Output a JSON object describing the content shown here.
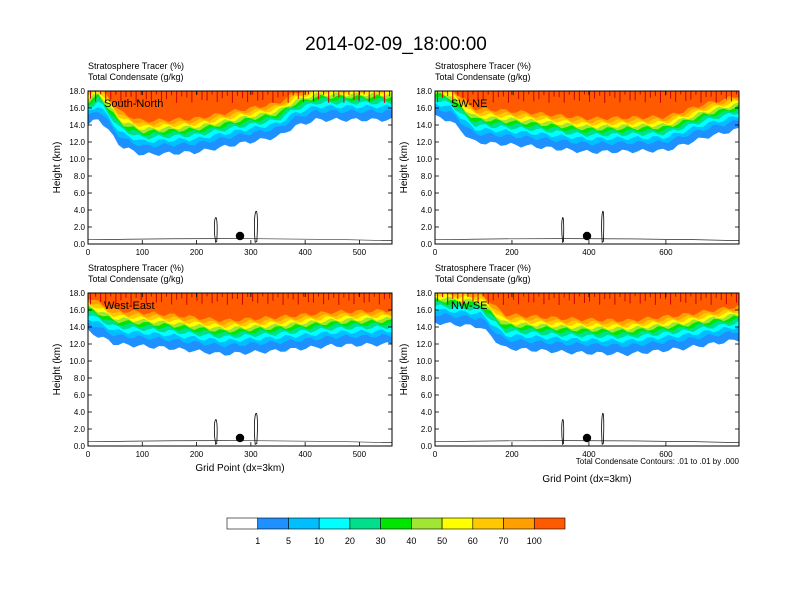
{
  "page_title": "2014-02-09_18:00:00",
  "footnote": "Total Condensate Contours: .01 to .01 by .000",
  "colorbar": {
    "ticks": [
      "1",
      "5",
      "10",
      "20",
      "30",
      "40",
      "50",
      "60",
      "70",
      "100"
    ],
    "colors": [
      "#ffffff",
      "#1e90ff",
      "#00bfff",
      "#00ffff",
      "#00e08c",
      "#00e600",
      "#a0e632",
      "#ffff00",
      "#ffc800",
      "#ffa000",
      "#ff5a00",
      "#ff0000"
    ]
  },
  "chart_data": [
    {
      "type": "heatmap",
      "panel": "South-North",
      "title_line1": "Stratosphere Tracer   (%)",
      "title_line2": "Total Condensate   (g/kg)",
      "xlabel": "",
      "ylabel": "Height (km)",
      "xlim": [
        0,
        560
      ],
      "ylim": [
        0,
        18
      ],
      "xticks": [
        "0",
        "100",
        "200",
        "300",
        "400",
        "500"
      ],
      "xtick_values": [
        0,
        100,
        200,
        300,
        400,
        500
      ],
      "yticks": [
        "0.0",
        "2.0",
        "4.0",
        "6.0",
        "8.0",
        "10.0",
        "12.0",
        "14.0",
        "16.0",
        "18.0"
      ],
      "marker_x": 280,
      "tracer_levels_pct": [
        1,
        5,
        10,
        20,
        30,
        40,
        50,
        60,
        70,
        100
      ],
      "layer_base_km": [
        [
          0,
          14.0
        ],
        [
          20,
          14.8
        ],
        [
          60,
          11.5
        ],
        [
          100,
          10.5
        ],
        [
          200,
          10.8
        ],
        [
          280,
          11.8
        ],
        [
          350,
          12.6
        ],
        [
          380,
          13.8
        ],
        [
          420,
          14.6
        ],
        [
          560,
          14.6
        ]
      ],
      "top_km": 18
    },
    {
      "type": "heatmap",
      "panel": "SW-NE",
      "title_line1": "Stratosphere Tracer   (%)",
      "title_line2": "Total Condensate   (g/kg)",
      "xlabel": "",
      "ylabel": "Height (km)",
      "xlim": [
        0,
        790
      ],
      "ylim": [
        0,
        18
      ],
      "xticks": [
        "0",
        "200",
        "400",
        "600"
      ],
      "xtick_values": [
        0,
        200,
        400,
        600
      ],
      "yticks": [
        "0.0",
        "2.0",
        "4.0",
        "6.0",
        "8.0",
        "10.0",
        "12.0",
        "14.0",
        "16.0",
        "18.0"
      ],
      "marker_x": 395,
      "tracer_levels_pct": [
        1,
        5,
        10,
        20,
        30,
        40,
        50,
        60,
        70,
        100
      ],
      "layer_base_km": [
        [
          0,
          15.0
        ],
        [
          40,
          14.5
        ],
        [
          100,
          12.0
        ],
        [
          250,
          11.5
        ],
        [
          400,
          10.8
        ],
        [
          600,
          11.0
        ],
        [
          700,
          12.5
        ],
        [
          790,
          13.5
        ]
      ],
      "top_km": 18
    },
    {
      "type": "heatmap",
      "panel": "West-East",
      "title_line1": "Stratosphere Tracer   (%)",
      "title_line2": "Total Condensate   (g/kg)",
      "xlabel": "Grid Point (dx=3km)",
      "ylabel": "Height (km)",
      "xlim": [
        0,
        560
      ],
      "ylim": [
        0,
        18
      ],
      "xticks": [
        "0",
        "100",
        "200",
        "300",
        "400",
        "500"
      ],
      "xtick_values": [
        0,
        100,
        200,
        300,
        400,
        500
      ],
      "yticks": [
        "0.0",
        "2.0",
        "4.0",
        "6.0",
        "8.0",
        "10.0",
        "12.0",
        "14.0",
        "16.0",
        "18.0"
      ],
      "marker_x": 280,
      "tracer_levels_pct": [
        1,
        5,
        10,
        20,
        30,
        40,
        50,
        60,
        70,
        100
      ],
      "layer_base_km": [
        [
          0,
          13.5
        ],
        [
          50,
          12.0
        ],
        [
          150,
          11.5
        ],
        [
          250,
          10.8
        ],
        [
          350,
          11.2
        ],
        [
          450,
          11.8
        ],
        [
          560,
          12.0
        ]
      ],
      "top_km": 18
    },
    {
      "type": "heatmap",
      "panel": "NW-SE",
      "title_line1": "Stratosphere Tracer   (%)",
      "title_line2": "Total Condensate   (g/kg)",
      "xlabel": "Grid Point (dx=3km)",
      "ylabel": "Height (km)",
      "xlim": [
        0,
        790
      ],
      "ylim": [
        0,
        18
      ],
      "xticks": [
        "0",
        "200",
        "400",
        "600"
      ],
      "xtick_values": [
        0,
        200,
        400,
        600
      ],
      "yticks": [
        "0.0",
        "2.0",
        "4.0",
        "6.0",
        "8.0",
        "10.0",
        "12.0",
        "14.0",
        "16.0",
        "18.0"
      ],
      "marker_x": 395,
      "tracer_levels_pct": [
        1,
        5,
        10,
        20,
        30,
        40,
        50,
        60,
        70,
        100
      ],
      "layer_base_km": [
        [
          0,
          14.5
        ],
        [
          120,
          14.0
        ],
        [
          180,
          11.5
        ],
        [
          350,
          11.0
        ],
        [
          500,
          10.8
        ],
        [
          650,
          11.5
        ],
        [
          790,
          12.5
        ]
      ],
      "top_km": 18
    }
  ]
}
